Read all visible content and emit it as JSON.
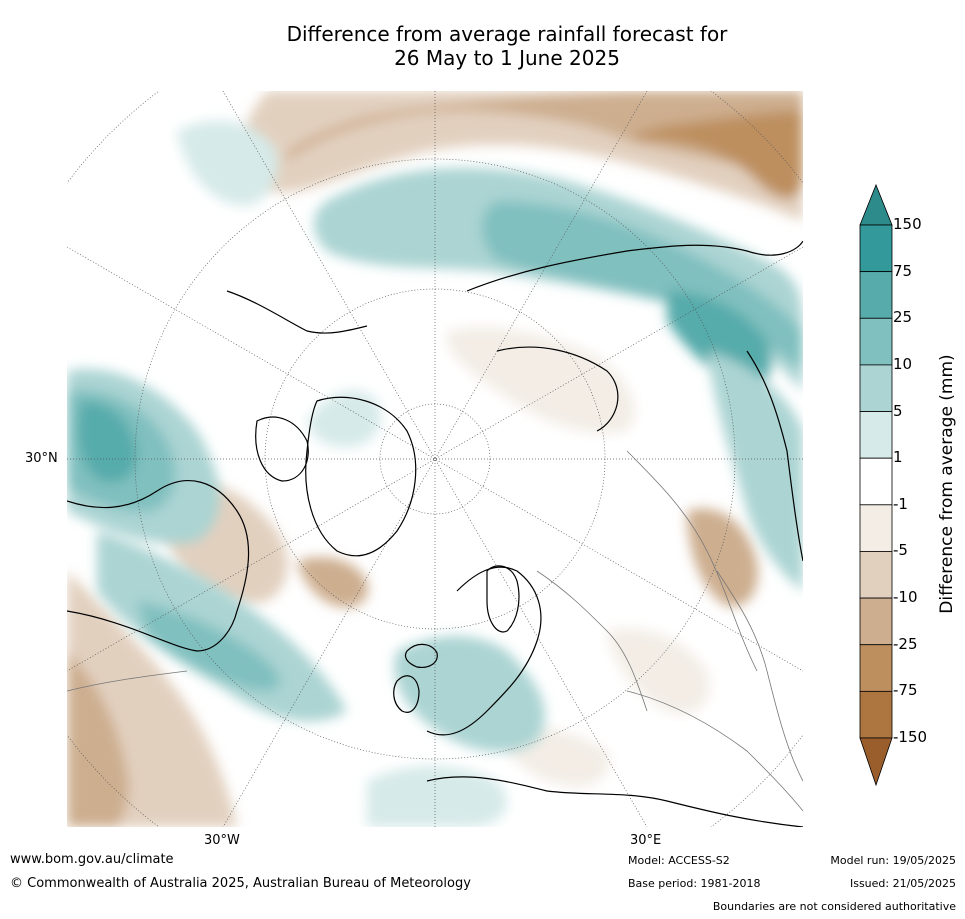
{
  "title": {
    "line1": "Difference from average rainfall forecast for",
    "line2": "26 May to 1 June 2025"
  },
  "map": {
    "projection": "north-polar-stereographic",
    "lat_labels": [
      "30°N"
    ],
    "lon_labels": [
      "30°W",
      "30°E"
    ]
  },
  "colorbar": {
    "title": "Difference from average (mm)",
    "ticks": [
      "150",
      "75",
      "25",
      "10",
      "5",
      "1",
      "-1",
      "-5",
      "-10",
      "-25",
      "-75",
      "-150"
    ],
    "colors": [
      "#2e8b8b",
      "#33999a",
      "#57abab",
      "#80c0bf",
      "#abd4d3",
      "#d6eae9",
      "#ffffff",
      "#f3ede6",
      "#e2d0bf",
      "#cdae8f",
      "#bd8f5e",
      "#ad7540",
      "#9a5e2d"
    ],
    "extend": "both"
  },
  "footer": {
    "url": "www.bom.gov.au/climate",
    "copyright": "© Commonwealth of Australia 2025, Australian Bureau of Meteorology",
    "model": "Model: ACCESS-S2",
    "base_period": "Base period: 1981-2018",
    "model_run": "Model run: 19/05/2025",
    "issued": "Issued: 21/05/2025",
    "disclaimer": "Boundaries are not considered authoritative"
  }
}
